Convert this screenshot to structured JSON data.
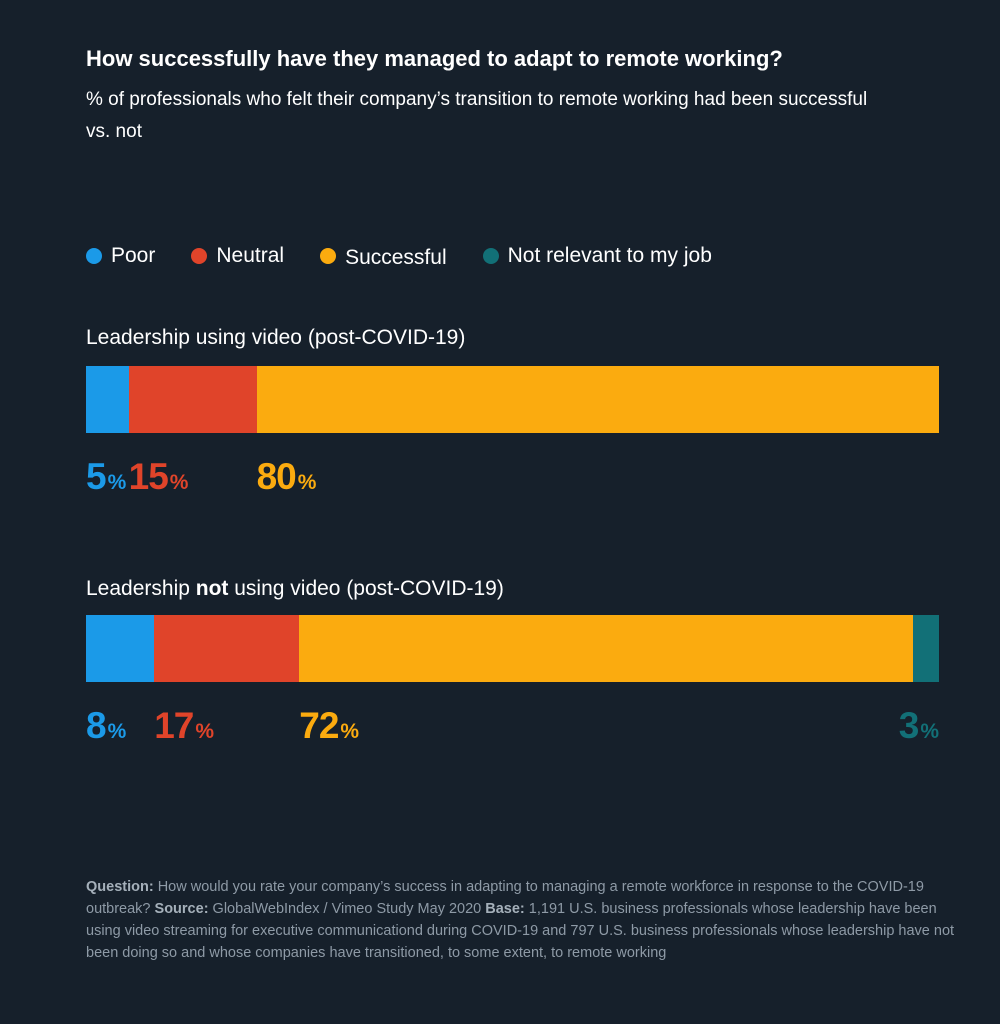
{
  "title": "How successfully have they managed to adapt to remote working?",
  "subtitle": "% of professionals who felt their company’s transition to remote working had been successful vs. not",
  "legend": [
    {
      "name": "Poor",
      "color": "#1b9ae8"
    },
    {
      "name": "Neutral",
      "color": "#e0442a"
    },
    {
      "name": "Successful",
      "color": "#fbab0f"
    },
    {
      "name": "Not relevant to my job",
      "color": "#127077"
    }
  ],
  "groups": [
    {
      "label_prefix": "Leadership using video (post-COVID-19)",
      "label_bold": "",
      "label_suffix": ""
    },
    {
      "label_prefix": "Leadership ",
      "label_bold": "not",
      "label_suffix": " using video (post-COVID-19)"
    }
  ],
  "percent_sign": "%",
  "chart_data": {
    "type": "bar",
    "orientation": "horizontal",
    "stacked": true,
    "title": "How successfully have they managed to adapt to remote working?",
    "subtitle": "% of professionals who felt their company’s transition to remote working had been successful vs. not",
    "categories": [
      "Leadership using video (post-COVID-19)",
      "Leadership not using video (post-COVID-19)"
    ],
    "series": [
      {
        "name": "Poor",
        "color": "#1b9ae8",
        "values": [
          5,
          8
        ]
      },
      {
        "name": "Neutral",
        "color": "#e0442a",
        "values": [
          15,
          17
        ]
      },
      {
        "name": "Successful",
        "color": "#fbab0f",
        "values": [
          80,
          72
        ]
      },
      {
        "name": "Not relevant to my job",
        "color": "#127077",
        "values": [
          0,
          3
        ]
      }
    ],
    "unit": "%",
    "xlim": [
      0,
      100
    ],
    "grid": false,
    "legend_position": "top-left"
  },
  "footnote": {
    "question_label": "Question:",
    "question_text": " How would you rate your company’s success in adapting to managing a remote workforce in response to the COVID-19 outbreak? ",
    "source_label": "Source:",
    "source_text": " GlobalWebIndex / Vimeo Study May 2020 ",
    "base_label": "Base:",
    "base_text": " 1,191 U.S. business professionals whose leadership have been using video streaming for executive communicationd during COVID-19 and 797 U.S. business professionals whose leadership have not been doing so and whose companies have transitioned, to some extent, to remote working"
  }
}
